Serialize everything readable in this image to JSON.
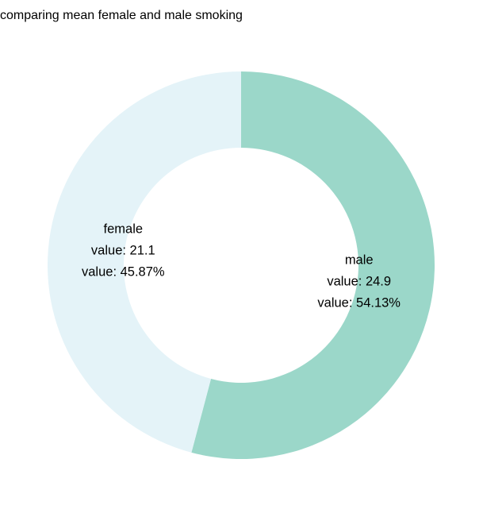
{
  "chart_data": {
    "type": "pie",
    "style": "donut",
    "title": "comparing mean female and male smoking",
    "slices": [
      {
        "name": "male",
        "value": 24.9,
        "percent": 54.13,
        "color": "#9bd7c9",
        "label_lines": [
          "male",
          "value: 24.9",
          "value: 54.13%"
        ]
      },
      {
        "name": "female",
        "value": 21.1,
        "percent": 45.87,
        "color": "#e4f3f8",
        "label_lines": [
          "female",
          "value: 21.1",
          "value: 45.87%"
        ]
      }
    ],
    "start_angle": "12 o'clock",
    "direction": "clockwise",
    "legend": "none"
  }
}
